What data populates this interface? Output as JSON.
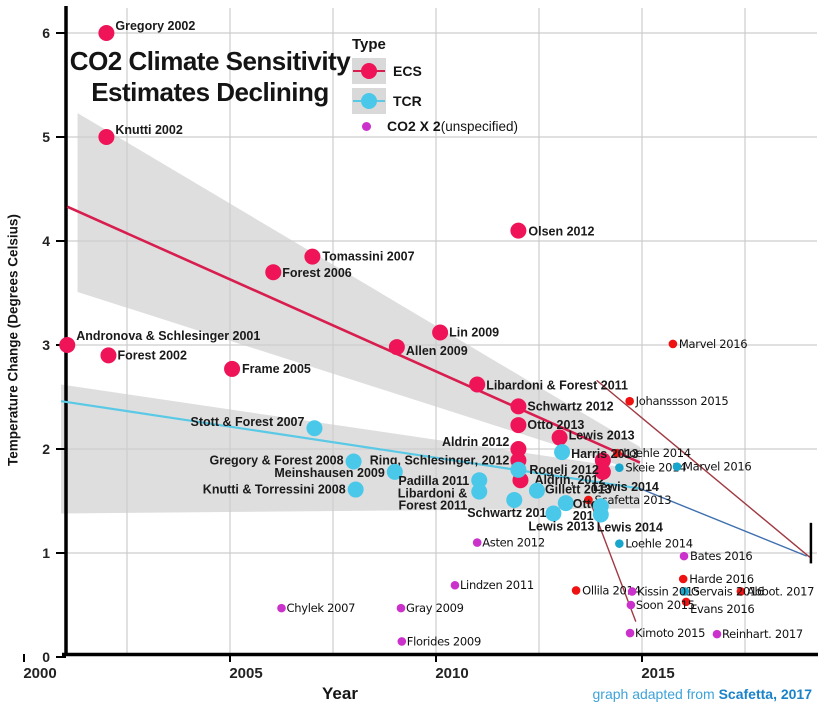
{
  "title": {
    "line1": "CO2 Climate Sensitivity",
    "line2": "Estimates Declining"
  },
  "axes": {
    "y_label": "Temperature Change (Degrees Celsius)",
    "x_label": "Year",
    "y_ticks": [
      0,
      1,
      2,
      3,
      4,
      5,
      6
    ],
    "x_ticks": [
      2000,
      2005,
      2010,
      2015
    ]
  },
  "legend": {
    "title": "Type",
    "items": [
      {
        "label": "ECS",
        "color": "#ee1457",
        "line_color": "#d81e4e",
        "swatch": true
      },
      {
        "label": "TCR",
        "color": "#4ac8ea",
        "line_color": "#5ac9e6",
        "swatch": true
      },
      {
        "label": "CO2 X 2",
        "suffix": " (unspecified)",
        "color": "#cb31cb",
        "swatch": false
      }
    ]
  },
  "caption": {
    "prefix": "graph adapted from ",
    "source": "Scafetta, 2017"
  },
  "chart_data": {
    "type": "scatter",
    "title": "CO2 Climate Sensitivity Estimates Declining",
    "xlabel": "Year",
    "ylabel": "Temperature Change (Degrees Celsius)",
    "xlim": [
      2000,
      2019.3
    ],
    "ylim": [
      0,
      6.2
    ],
    "grid": {
      "vertical_years": [
        2002.5,
        2005,
        2007.5,
        2010,
        2012.5,
        2015,
        2017.5
      ],
      "horizontal_values": [
        1,
        2,
        3,
        4,
        5,
        6
      ]
    },
    "colors": {
      "band": "#dedede",
      "grid": "#cdcdcd",
      "axis": "#000000",
      "ecs": "#ee1457",
      "ecs_small": "#ee1212",
      "tcr": "#4ac8ea",
      "tcr_small": "#17a7cd",
      "co2": "#cb31cb",
      "trend_ecs": "#d81e4e",
      "trend_tcr": "#5ac9e6",
      "proj_red": "#a03a44",
      "proj_blue": "#3f6fae"
    },
    "bands": [
      {
        "name": "ecs-confidence-band",
        "points": [
          [
            2001.3,
            5.23
          ],
          [
            2014.95,
            2.02
          ],
          [
            2014.95,
            1.78
          ],
          [
            2001.3,
            3.51
          ]
        ]
      },
      {
        "name": "tcr-confidence-band",
        "points": [
          [
            2000.9,
            2.62
          ],
          [
            2014.95,
            1.8
          ],
          [
            2014.95,
            1.43
          ],
          [
            2000.9,
            1.38
          ]
        ]
      }
    ],
    "lines": [
      {
        "name": "ecs-trend",
        "from": [
          2001.05,
          4.33
        ],
        "to": [
          2014.95,
          1.87
        ],
        "color": "trend_ecs",
        "width": 2.6
      },
      {
        "name": "tcr-trend",
        "from": [
          2000.9,
          2.46
        ],
        "to": [
          2014.95,
          1.62
        ],
        "color": "trend_tcr",
        "width": 2.2
      },
      {
        "name": "ecs-projection",
        "from": [
          2013.9,
          2.66
        ],
        "to": [
          2019.07,
          0.96
        ],
        "color": "proj_red",
        "width": 1.4
      },
      {
        "name": "tcr-projection",
        "from": [
          2014.95,
          1.62
        ],
        "to": [
          2019.0,
          0.97
        ],
        "color": "proj_blue",
        "width": 1.4
      },
      {
        "name": "drop-line",
        "from": [
          2013.7,
          1.54
        ],
        "to": [
          2014.85,
          0.34
        ],
        "color": "proj_red",
        "width": 1.4
      },
      {
        "name": "end-cap",
        "from": [
          2019.1,
          1.29
        ],
        "to": [
          2019.1,
          0.9
        ],
        "color": "axis",
        "width": 2.5
      }
    ],
    "series": [
      {
        "name": "ECS",
        "points": [
          {
            "label": "Gregory 2002",
            "year": 2002.0,
            "value": 6.0,
            "size": "lg",
            "style": "bold",
            "anchor": "start",
            "dx": 9,
            "dy": -7
          },
          {
            "label": "Knutti 2002",
            "year": 2002.0,
            "value": 5.0,
            "size": "lg",
            "style": "bold",
            "anchor": "start",
            "dx": 9,
            "dy": -7
          },
          {
            "label": "Andronova & Schlesinger 2001",
            "year": 2001.05,
            "value": 3.0,
            "size": "lg",
            "style": "bold",
            "anchor": "start",
            "dx": 9,
            "dy": -9
          },
          {
            "label": "Forest 2002",
            "year": 2002.05,
            "value": 2.9,
            "size": "lg",
            "style": "bold",
            "anchor": "start",
            "dx": 9,
            "dy": 0
          },
          {
            "label": "Frame 2005",
            "year": 2005.05,
            "value": 2.77,
            "size": "lg",
            "style": "bold",
            "anchor": "start",
            "dx": 10,
            "dy": 0
          },
          {
            "label": "Forest 2006",
            "year": 2006.05,
            "value": 3.7,
            "size": "lg",
            "style": "bold",
            "anchor": "start",
            "dx": 9,
            "dy": 1
          },
          {
            "label": "Tomassini 2007",
            "year": 2007.0,
            "value": 3.85,
            "size": "lg",
            "style": "bold",
            "anchor": "start",
            "dx": 10,
            "dy": 0
          },
          {
            "label": "Allen 2009",
            "year": 2009.05,
            "value": 2.98,
            "size": "lg",
            "style": "bold",
            "anchor": "start",
            "dx": 9,
            "dy": 4
          },
          {
            "label": "Lin 2009",
            "year": 2010.1,
            "value": 3.12,
            "size": "lg",
            "style": "bold",
            "anchor": "start",
            "dx": 9,
            "dy": 0
          },
          {
            "label": "Olsen 2012",
            "year": 2012.0,
            "value": 4.1,
            "size": "lg",
            "style": "bold",
            "anchor": "start",
            "dx": 10,
            "dy": 1
          },
          {
            "label": "Libardoni & Forest 2011",
            "year": 2011.0,
            "value": 2.62,
            "size": "lg",
            "style": "bold",
            "anchor": "start",
            "dx": 9,
            "dy": 1
          },
          {
            "label": "Schwartz 2012",
            "year": 2012.0,
            "value": 2.41,
            "size": "lg",
            "style": "bold",
            "anchor": "start",
            "dx": 9,
            "dy": 0
          },
          {
            "label": "Otto 2013",
            "year": 2012.0,
            "value": 2.23,
            "size": "lg",
            "style": "bold",
            "anchor": "start",
            "dx": 9,
            "dy": 0
          },
          {
            "label": "Lewis 2013",
            "year": 2013.0,
            "value": 2.11,
            "size": "lg",
            "style": "bold",
            "anchor": "start",
            "dx": 9,
            "dy": -2
          },
          {
            "label": "Aldrin 2012",
            "year": 2012.0,
            "value": 2.0,
            "size": "lg",
            "style": "bold",
            "anchor": "end",
            "dx": -9,
            "dy": -7
          },
          {
            "label": "Ring, Schlesinger, 2012",
            "year": 2012.0,
            "value": 1.89,
            "size": "lg",
            "style": "bold",
            "anchor": "end",
            "dx": -9,
            "dy": 0
          },
          {
            "label": "Aldrin, 2012",
            "year": 2012.05,
            "value": 1.7,
            "size": "lg",
            "style": "bold",
            "anchor": "start",
            "dx": 14,
            "dy": 0
          },
          {
            "label": "",
            "year": 2014.05,
            "value": 1.89,
            "size": "lg",
            "style": "bold",
            "anchor": "start",
            "dx": 0,
            "dy": 0
          },
          {
            "label": "Lewis 2014",
            "year": 2014.05,
            "value": 1.78,
            "size": "lg",
            "style": "bold",
            "anchor": "start",
            "dx": -10,
            "dy": 15
          },
          {
            "label": "Loehle 2014",
            "year": 2014.4,
            "value": 1.96,
            "size": "sm",
            "style": "script",
            "anchor": "start",
            "dx": 6,
            "dy": 0
          },
          {
            "label": "Johanssson 2015",
            "year": 2014.7,
            "value": 2.46,
            "size": "sm",
            "style": "script",
            "anchor": "start",
            "dx": 6,
            "dy": 0
          },
          {
            "label": "Marvel 2016",
            "year": 2015.75,
            "value": 3.01,
            "size": "sm",
            "style": "script",
            "anchor": "start",
            "dx": 6,
            "dy": 0
          },
          {
            "label": "Scafetta 2013",
            "year": 2013.7,
            "value": 1.51,
            "size": "sm",
            "style": "script",
            "anchor": "start",
            "dx": 6,
            "dy": 0
          },
          {
            "label": "Ollila 2014",
            "year": 2013.4,
            "value": 0.64,
            "size": "sm",
            "style": "script",
            "anchor": "start",
            "dx": 6,
            "dy": 0
          },
          {
            "label": "Harde 2016",
            "year": 2016.0,
            "value": 0.75,
            "size": "sm",
            "style": "script",
            "anchor": "start",
            "dx": 6,
            "dy": 0
          },
          {
            "label": "Abbot. 2017",
            "year": 2017.4,
            "value": 0.63,
            "size": "sm",
            "style": "script",
            "anchor": "start",
            "dx": 6,
            "dy": 0
          },
          {
            "label": "Evans 2016",
            "year": 2016.07,
            "value": 0.53,
            "size": "sm",
            "style": "script",
            "anchor": "start",
            "dx": 4,
            "dy": 7
          }
        ]
      },
      {
        "name": "TCR",
        "points": [
          {
            "label": "Stott & Forest 2007",
            "year": 2007.05,
            "value": 2.2,
            "size": "lg",
            "style": "bold",
            "anchor": "end",
            "dx": -10,
            "dy": -6
          },
          {
            "label": "Gregory & Forest 2008",
            "year": 2008.0,
            "value": 1.88,
            "size": "lg",
            "style": "bold",
            "anchor": "end",
            "dx": -10,
            "dy": -1
          },
          {
            "label": "Meinshausen 2009",
            "year": 2009.0,
            "value": 1.78,
            "size": "lg",
            "style": "bold",
            "anchor": "end",
            "dx": -10,
            "dy": 1
          },
          {
            "label": "Knutti & Torressini 2008",
            "year": 2008.05,
            "value": 1.61,
            "size": "lg",
            "style": "bold",
            "anchor": "end",
            "dx": -10,
            "dy": 0
          },
          {
            "label": "Padilla 2011",
            "year": 2011.05,
            "value": 1.7,
            "size": "lg",
            "style": "bold",
            "anchor": "end",
            "dx": -10,
            "dy": 1
          },
          {
            "label": "Libardoni &",
            "label2": "Forest 2011",
            "year": 2011.05,
            "value": 1.59,
            "size": "lg",
            "style": "bold",
            "anchor": "end",
            "dx": -12,
            "dy": 2,
            "dy2": 12
          },
          {
            "label": "Schwartz 2012",
            "year": 2011.9,
            "value": 1.51,
            "size": "lg",
            "style": "bold",
            "anchor": "middle",
            "dx": -4,
            "dy": 13
          },
          {
            "label": "Rogelj 2012",
            "year": 2012.0,
            "value": 1.8,
            "size": "lg",
            "style": "bold",
            "anchor": "start",
            "dx": 11,
            "dy": 0
          },
          {
            "label": "Harris 2013",
            "year": 2013.06,
            "value": 1.97,
            "size": "lg",
            "style": "bold",
            "anchor": "start",
            "dx": 9,
            "dy": 2
          },
          {
            "label": "Gillett 2013",
            "year": 2012.45,
            "value": 1.6,
            "size": "lg",
            "style": "bold",
            "anchor": "start",
            "dx": 8,
            "dy": -1
          },
          {
            "label": "Otto",
            "label2": "2013",
            "year": 2013.15,
            "value": 1.48,
            "size": "lg",
            "style": "bold",
            "anchor": "start",
            "dx": 7,
            "dy": 1,
            "dy2": 12
          },
          {
            "label": "Lewis 2013",
            "year": 2012.85,
            "value": 1.38,
            "size": "lg",
            "style": "bold",
            "anchor": "middle",
            "dx": 8,
            "dy": 13
          },
          {
            "label": "",
            "year": 2014.0,
            "value": 1.45,
            "size": "lg",
            "style": "bold",
            "anchor": "start",
            "dx": 0,
            "dy": 0
          },
          {
            "label": "Lewis 2014",
            "year": 2014.0,
            "value": 1.37,
            "size": "lg",
            "style": "bold",
            "anchor": "start",
            "dx": -4,
            "dy": 13
          },
          {
            "label": "Skeie 2014",
            "year": 2014.45,
            "value": 1.82,
            "size": "sm",
            "style": "script",
            "anchor": "start",
            "dx": 6,
            "dy": 0
          },
          {
            "label": "Marvel 2016",
            "year": 2015.85,
            "value": 1.83,
            "size": "sm",
            "style": "script",
            "anchor": "start",
            "dx": 6,
            "dy": 0
          },
          {
            "label": "Loehle 2014",
            "year": 2014.45,
            "value": 1.09,
            "size": "sm",
            "style": "script",
            "anchor": "start",
            "dx": 6,
            "dy": 0
          },
          {
            "label": "Gervais 2016",
            "year": 2016.04,
            "value": 0.63,
            "size": "sm",
            "style": "script",
            "anchor": "start",
            "dx": 6,
            "dy": 0
          }
        ]
      },
      {
        "name": "CO2 X 2 (unspecified)",
        "points": [
          {
            "label": "Chylek 2007",
            "year": 2006.25,
            "value": 0.47,
            "size": "sm",
            "style": "script",
            "anchor": "start",
            "dx": 5,
            "dy": 0
          },
          {
            "label": "Gray 2009",
            "year": 2009.15,
            "value": 0.47,
            "size": "sm",
            "style": "script",
            "anchor": "start",
            "dx": 5,
            "dy": 0
          },
          {
            "label": "Florides 2009",
            "year": 2009.17,
            "value": 0.15,
            "size": "sm",
            "style": "script",
            "anchor": "start",
            "dx": 5,
            "dy": 0
          },
          {
            "label": "Lindzen 2011",
            "year": 2010.46,
            "value": 0.69,
            "size": "sm",
            "style": "script",
            "anchor": "start",
            "dx": 5,
            "dy": 0
          },
          {
            "label": "Asten 2012",
            "year": 2011.0,
            "value": 1.1,
            "size": "sm",
            "style": "script",
            "anchor": "start",
            "dx": 5,
            "dy": 0
          },
          {
            "label": "Kissin 2015",
            "year": 2014.76,
            "value": 0.63,
            "size": "sm",
            "style": "script",
            "anchor": "start",
            "dx": 5,
            "dy": 0
          },
          {
            "label": "Soon 2015",
            "year": 2014.73,
            "value": 0.5,
            "size": "sm",
            "style": "script",
            "anchor": "start",
            "dx": 5,
            "dy": 0
          },
          {
            "label": "Kimoto 2015",
            "year": 2014.71,
            "value": 0.23,
            "size": "sm",
            "style": "script",
            "anchor": "start",
            "dx": 5,
            "dy": 0
          },
          {
            "label": "Bates 2016",
            "year": 2016.02,
            "value": 0.97,
            "size": "sm",
            "style": "script",
            "anchor": "start",
            "dx": 6,
            "dy": 0
          },
          {
            "label": "Reinhart. 2017",
            "year": 2016.82,
            "value": 0.22,
            "size": "sm",
            "style": "script",
            "anchor": "start",
            "dx": 5,
            "dy": 0
          }
        ]
      }
    ]
  }
}
